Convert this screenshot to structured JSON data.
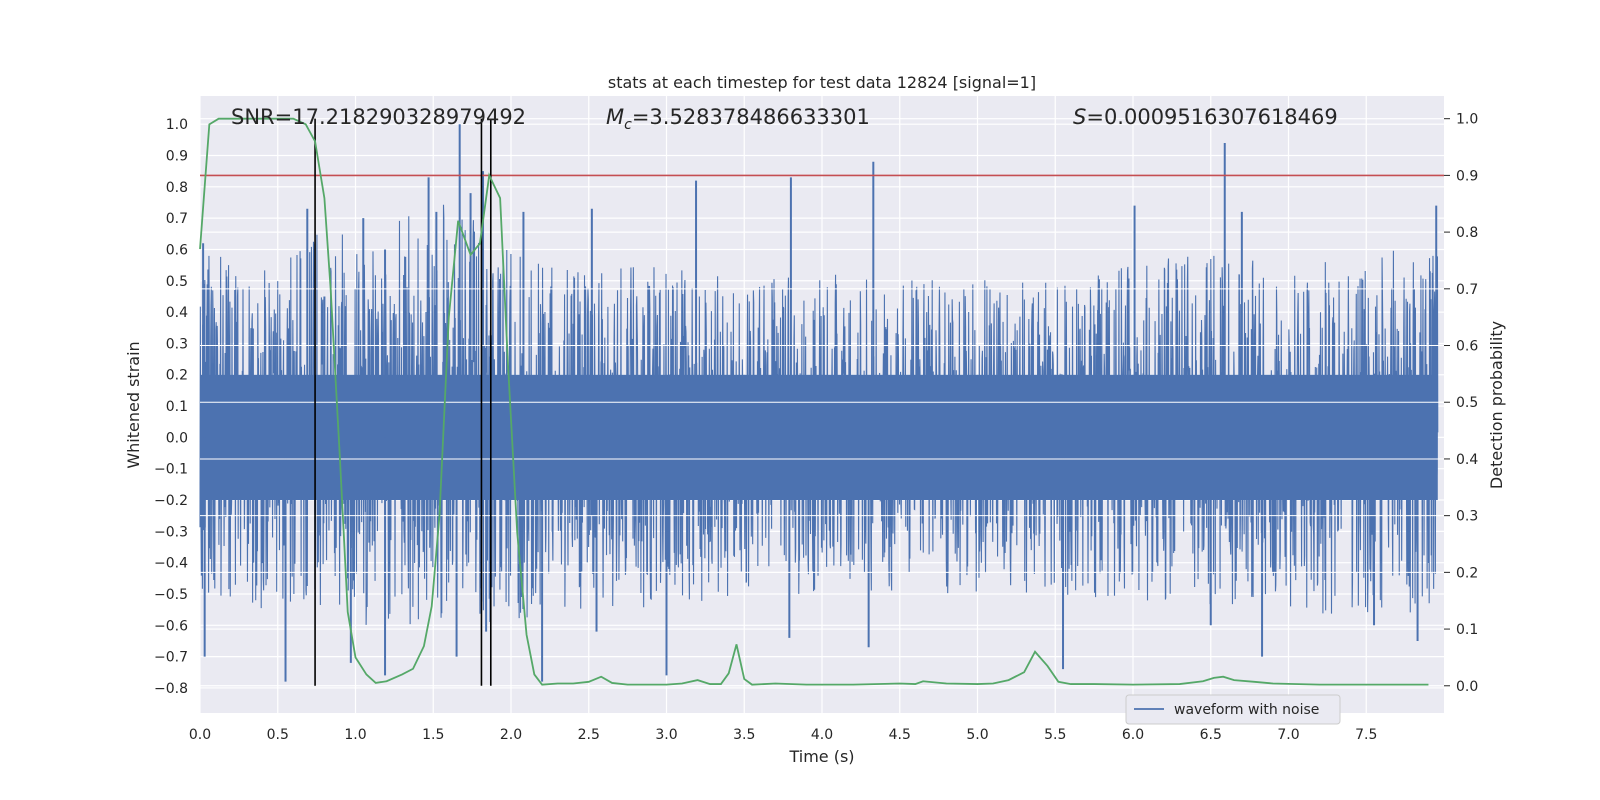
{
  "chart_data": {
    "type": "line",
    "title": "stats at each timestep for test data 12824 [signal=1]",
    "xlabel": "Time (s)",
    "ylabel_left": "Whitened strain",
    "ylabel_right": "Detection probability",
    "xlim": [
      0.0,
      8.0
    ],
    "ylim_left": [
      -0.88,
      1.09
    ],
    "ylim_right": [
      -0.048,
      1.04
    ],
    "x_ticks": [
      "0.0",
      "0.5",
      "1.0",
      "1.5",
      "2.0",
      "2.5",
      "3.0",
      "3.5",
      "4.0",
      "4.5",
      "5.0",
      "5.5",
      "6.0",
      "6.5",
      "7.0",
      "7.5"
    ],
    "y_left_ticks": [
      "1.0",
      "0.9",
      "0.8",
      "0.7",
      "0.6",
      "0.5",
      "0.4",
      "0.3",
      "0.2",
      "0.1",
      "0.0",
      "−0.1",
      "−0.2",
      "−0.3",
      "−0.4",
      "−0.5",
      "−0.6",
      "−0.7",
      "−0.8"
    ],
    "y_right_ticks": [
      "1.0",
      "0.9",
      "0.8",
      "0.7",
      "0.6",
      "0.5",
      "0.4",
      "0.3",
      "0.2",
      "0.1",
      "0.0"
    ],
    "grid": true,
    "legend_position": "bottom-right",
    "annotations": {
      "snr": "SNR=17.218290328979492",
      "mc_symbol": "M",
      "mc_sub": "c",
      "mc_value": "=3.528378486633301",
      "s_symbol": "S",
      "s_value": "=0.0009516307618469"
    },
    "threshold_right": 0.9,
    "vertical_lines_x": [
      0.74,
      1.81,
      1.87
    ],
    "series": [
      {
        "name": "waveform with noise",
        "axis": "left",
        "color": "#4c72b0",
        "envelope_top": [
          [
            0.0,
            0.62
          ],
          [
            0.25,
            0.55
          ],
          [
            0.5,
            0.55
          ],
          [
            0.75,
            0.65
          ],
          [
            1.0,
            0.66
          ],
          [
            1.25,
            0.7
          ],
          [
            1.5,
            0.78
          ],
          [
            1.75,
            0.7
          ],
          [
            2.0,
            0.6
          ],
          [
            2.25,
            0.55
          ],
          [
            2.5,
            0.55
          ],
          [
            3.0,
            0.55
          ],
          [
            3.5,
            0.5
          ],
          [
            4.0,
            0.52
          ],
          [
            4.5,
            0.52
          ],
          [
            5.0,
            0.5
          ],
          [
            5.5,
            0.52
          ],
          [
            6.0,
            0.55
          ],
          [
            6.5,
            0.6
          ],
          [
            7.0,
            0.55
          ],
          [
            7.5,
            0.6
          ],
          [
            8.0,
            0.6
          ]
        ],
        "envelope_bottom": [
          [
            0.0,
            -0.55
          ],
          [
            0.25,
            -0.55
          ],
          [
            0.5,
            -0.55
          ],
          [
            0.75,
            -0.55
          ],
          [
            1.0,
            -0.6
          ],
          [
            1.25,
            -0.6
          ],
          [
            1.5,
            -0.6
          ],
          [
            1.75,
            -0.6
          ],
          [
            2.0,
            -0.6
          ],
          [
            2.25,
            -0.55
          ],
          [
            2.5,
            -0.55
          ],
          [
            3.0,
            -0.55
          ],
          [
            3.5,
            -0.5
          ],
          [
            4.0,
            -0.5
          ],
          [
            4.5,
            -0.5
          ],
          [
            5.0,
            -0.5
          ],
          [
            5.5,
            -0.5
          ],
          [
            6.0,
            -0.52
          ],
          [
            6.5,
            -0.55
          ],
          [
            7.0,
            -0.55
          ],
          [
            7.5,
            -0.6
          ],
          [
            8.0,
            -0.55
          ]
        ],
        "spikes": [
          [
            0.02,
            0.62
          ],
          [
            0.03,
            -0.7
          ],
          [
            0.55,
            -0.78
          ],
          [
            0.69,
            0.73
          ],
          [
            0.8,
            0.45
          ],
          [
            0.97,
            -0.72
          ],
          [
            1.05,
            0.7
          ],
          [
            1.19,
            0.6
          ],
          [
            1.19,
            -0.76
          ],
          [
            1.47,
            0.83
          ],
          [
            1.52,
            0.72
          ],
          [
            1.65,
            -0.7
          ],
          [
            1.67,
            1.0
          ],
          [
            1.74,
            0.78
          ],
          [
            1.82,
            0.85
          ],
          [
            1.84,
            -0.62
          ],
          [
            2.08,
            0.72
          ],
          [
            2.2,
            -0.78
          ],
          [
            2.52,
            0.73
          ],
          [
            2.55,
            -0.62
          ],
          [
            3.0,
            -0.76
          ],
          [
            3.19,
            0.82
          ],
          [
            3.79,
            -0.64
          ],
          [
            3.8,
            0.83
          ],
          [
            4.3,
            -0.67
          ],
          [
            4.33,
            0.88
          ],
          [
            5.55,
            -0.74
          ],
          [
            6.01,
            0.74
          ],
          [
            6.5,
            -0.6
          ],
          [
            6.59,
            0.94
          ],
          [
            6.7,
            0.72
          ],
          [
            6.83,
            -0.7
          ],
          [
            7.55,
            -0.6
          ],
          [
            7.83,
            -0.65
          ],
          [
            7.95,
            0.74
          ]
        ]
      },
      {
        "name": "",
        "axis": "right",
        "color": "#55a868",
        "points": [
          [
            0.0,
            0.77
          ],
          [
            0.06,
            0.99
          ],
          [
            0.12,
            1.0
          ],
          [
            0.2,
            1.0
          ],
          [
            0.3,
            1.0
          ],
          [
            0.4,
            1.0
          ],
          [
            0.5,
            1.0
          ],
          [
            0.6,
            1.0
          ],
          [
            0.68,
            0.99
          ],
          [
            0.74,
            0.96
          ],
          [
            0.8,
            0.86
          ],
          [
            0.84,
            0.7
          ],
          [
            0.9,
            0.4
          ],
          [
            0.95,
            0.13
          ],
          [
            1.0,
            0.05
          ],
          [
            1.07,
            0.02
          ],
          [
            1.13,
            0.005
          ],
          [
            1.2,
            0.008
          ],
          [
            1.3,
            0.02
          ],
          [
            1.37,
            0.03
          ],
          [
            1.44,
            0.07
          ],
          [
            1.49,
            0.14
          ],
          [
            1.54,
            0.3
          ],
          [
            1.6,
            0.65
          ],
          [
            1.66,
            0.82
          ],
          [
            1.74,
            0.76
          ],
          [
            1.8,
            0.78
          ],
          [
            1.86,
            0.9
          ],
          [
            1.93,
            0.86
          ],
          [
            1.98,
            0.57
          ],
          [
            2.04,
            0.27
          ],
          [
            2.1,
            0.09
          ],
          [
            2.15,
            0.02
          ],
          [
            2.2,
            0.002
          ],
          [
            2.3,
            0.004
          ],
          [
            2.4,
            0.004
          ],
          [
            2.5,
            0.007
          ],
          [
            2.58,
            0.016
          ],
          [
            2.65,
            0.005
          ],
          [
            2.75,
            0.002
          ],
          [
            3.0,
            0.002
          ],
          [
            3.1,
            0.004
          ],
          [
            3.2,
            0.01
          ],
          [
            3.28,
            0.003
          ],
          [
            3.35,
            0.003
          ],
          [
            3.4,
            0.022
          ],
          [
            3.45,
            0.073
          ],
          [
            3.5,
            0.012
          ],
          [
            3.55,
            0.002
          ],
          [
            3.7,
            0.004
          ],
          [
            3.9,
            0.002
          ],
          [
            4.2,
            0.002
          ],
          [
            4.5,
            0.004
          ],
          [
            4.6,
            0.003
          ],
          [
            4.65,
            0.008
          ],
          [
            4.8,
            0.004
          ],
          [
            5.0,
            0.003
          ],
          [
            5.1,
            0.004
          ],
          [
            5.2,
            0.01
          ],
          [
            5.3,
            0.024
          ],
          [
            5.37,
            0.06
          ],
          [
            5.45,
            0.035
          ],
          [
            5.52,
            0.007
          ],
          [
            5.6,
            0.003
          ],
          [
            5.75,
            0.003
          ],
          [
            6.0,
            0.002
          ],
          [
            6.3,
            0.003
          ],
          [
            6.45,
            0.008
          ],
          [
            6.52,
            0.014
          ],
          [
            6.58,
            0.016
          ],
          [
            6.65,
            0.01
          ],
          [
            6.78,
            0.007
          ],
          [
            6.9,
            0.004
          ],
          [
            7.2,
            0.002
          ],
          [
            7.5,
            0.002
          ],
          [
            7.9,
            0.002
          ]
        ]
      }
    ],
    "colors": {
      "plot_bg": "#eaeaf2",
      "grid": "#ffffff",
      "threshold": "#c44e52",
      "vlines": "#000000",
      "text": "#262626"
    }
  }
}
